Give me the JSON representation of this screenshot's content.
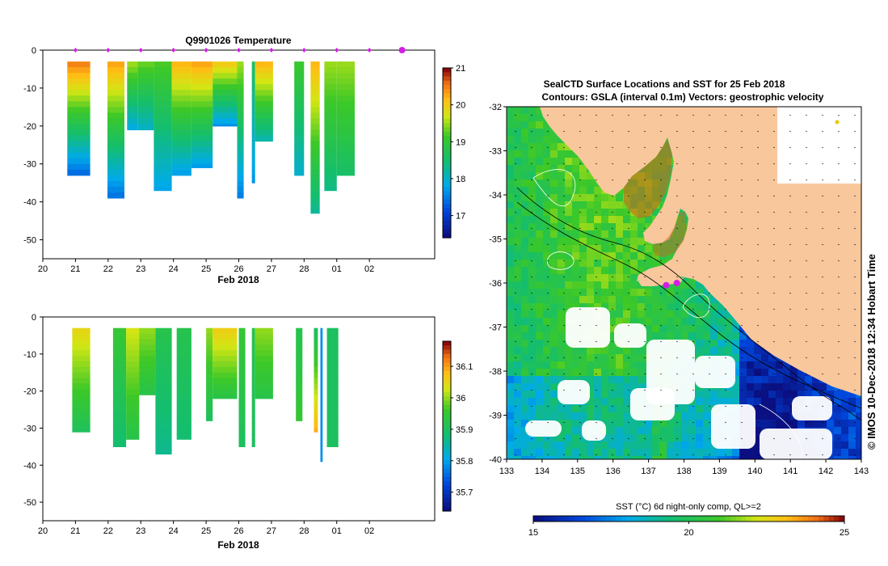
{
  "profile_panels": {
    "title": "Q9901026  Temperature",
    "x_ticks": [
      "20",
      "21",
      "22",
      "23",
      "24",
      "25",
      "26",
      "27",
      "28",
      "01",
      "02"
    ],
    "x_label": "Feb 2018",
    "y_ticks": [
      "0",
      "-10",
      "-20",
      "-30",
      "-40",
      "-50"
    ]
  },
  "chart_data": [
    {
      "type": "heatmap",
      "title": "Q9901026  Temperature",
      "variable": "Temperature",
      "xlabel": "Feb 2018",
      "xlim": [
        20,
        32
      ],
      "ylim": [
        -55,
        0
      ],
      "colorbar": {
        "min": 16.4,
        "max": 21.0,
        "ticks": [
          "21",
          "20",
          "19",
          "18",
          "17"
        ],
        "tick_values": [
          21,
          20,
          19,
          18,
          17
        ]
      },
      "profile_days": [
        21,
        22,
        23,
        24,
        25,
        26,
        27,
        28,
        29,
        30,
        31
      ],
      "current_day": 31,
      "casts": [
        {
          "x0": 20.75,
          "x1": 21.45,
          "depth_min": 3,
          "depth_max": 33,
          "top_value": 20.5,
          "bottom_value": 17.2
        },
        {
          "x0": 21.98,
          "x1": 22.5,
          "depth_min": 3,
          "depth_max": 39,
          "top_value": 20.3,
          "bottom_value": 17.3
        },
        {
          "x0": 22.58,
          "x1": 22.9,
          "depth_min": 3,
          "depth_max": 21,
          "top_value": 19.5,
          "bottom_value": 17.7
        },
        {
          "x0": 22.9,
          "x1": 23.4,
          "depth_min": 3,
          "depth_max": 21,
          "top_value": 19.3,
          "bottom_value": 17.9
        },
        {
          "x0": 23.4,
          "x1": 23.95,
          "depth_min": 3,
          "depth_max": 37,
          "top_value": 19.2,
          "bottom_value": 17.7
        },
        {
          "x0": 23.95,
          "x1": 24.55,
          "depth_min": 3,
          "depth_max": 33,
          "top_value": 20.2,
          "bottom_value": 17.6
        },
        {
          "x0": 24.55,
          "x1": 25.2,
          "depth_min": 3,
          "depth_max": 31,
          "top_value": 20.3,
          "bottom_value": 17.6
        },
        {
          "x0": 25.2,
          "x1": 25.95,
          "depth_min": 3,
          "depth_max": 20,
          "top_value": 20.0,
          "bottom_value": 17.5
        },
        {
          "x0": 25.95,
          "x1": 26.15,
          "depth_min": 3,
          "depth_max": 39,
          "top_value": 19.5,
          "bottom_value": 17.4
        },
        {
          "x0": 26.4,
          "x1": 26.5,
          "depth_min": 3,
          "depth_max": 35,
          "top_value": 18.6,
          "bottom_value": 17.6
        },
        {
          "x0": 26.5,
          "x1": 27.05,
          "depth_min": 3,
          "depth_max": 24,
          "top_value": 20.2,
          "bottom_value": 18.0
        },
        {
          "x0": 27.7,
          "x1": 28.0,
          "depth_min": 3,
          "depth_max": 33,
          "top_value": 19.1,
          "bottom_value": 17.9
        },
        {
          "x0": 28.2,
          "x1": 28.48,
          "depth_min": 3,
          "depth_max": 43,
          "top_value": 20.2,
          "bottom_value": 18.2
        },
        {
          "x0": 28.62,
          "x1": 29.0,
          "depth_min": 3,
          "depth_max": 37,
          "top_value": 19.5,
          "bottom_value": 18.3
        },
        {
          "x0": 29.0,
          "x1": 29.55,
          "depth_min": 3,
          "depth_max": 33,
          "top_value": 19.5,
          "bottom_value": 18.5
        }
      ]
    },
    {
      "type": "heatmap",
      "title": "",
      "variable": "Salinity",
      "xlabel": "Feb 2018",
      "xlim": [
        20,
        32
      ],
      "ylim": [
        -55,
        0
      ],
      "colorbar": {
        "min": 35.64,
        "max": 36.18,
        "ticks": [
          "36.1",
          "36",
          "35.9",
          "35.8",
          "35.7"
        ],
        "tick_values": [
          36.1,
          36.0,
          35.9,
          35.8,
          35.7
        ]
      },
      "casts": [
        {
          "x0": 20.9,
          "x1": 21.45,
          "depth_min": 3,
          "depth_max": 31,
          "top_value": 36.05,
          "bottom_value": 35.9
        },
        {
          "x0": 22.15,
          "x1": 22.55,
          "depth_min": 3,
          "depth_max": 35,
          "top_value": 35.95,
          "bottom_value": 35.88
        },
        {
          "x0": 22.55,
          "x1": 22.95,
          "depth_min": 3,
          "depth_max": 33,
          "top_value": 36.03,
          "bottom_value": 35.92
        },
        {
          "x0": 22.95,
          "x1": 23.45,
          "depth_min": 3,
          "depth_max": 21,
          "top_value": 36.0,
          "bottom_value": 35.92
        },
        {
          "x0": 23.45,
          "x1": 23.95,
          "depth_min": 3,
          "depth_max": 37,
          "top_value": 35.92,
          "bottom_value": 35.86
        },
        {
          "x0": 24.1,
          "x1": 24.55,
          "depth_min": 3,
          "depth_max": 33,
          "top_value": 35.92,
          "bottom_value": 35.88
        },
        {
          "x0": 25.0,
          "x1": 25.2,
          "depth_min": 3,
          "depth_max": 28,
          "top_value": 36.0,
          "bottom_value": 35.9
        },
        {
          "x0": 25.2,
          "x1": 25.95,
          "depth_min": 3,
          "depth_max": 22,
          "top_value": 36.06,
          "bottom_value": 35.92
        },
        {
          "x0": 26.0,
          "x1": 26.2,
          "depth_min": 3,
          "depth_max": 35,
          "top_value": 35.95,
          "bottom_value": 35.9
        },
        {
          "x0": 26.4,
          "x1": 26.5,
          "depth_min": 3,
          "depth_max": 35,
          "top_value": 35.92,
          "bottom_value": 35.9
        },
        {
          "x0": 26.5,
          "x1": 27.05,
          "depth_min": 3,
          "depth_max": 22,
          "top_value": 36.0,
          "bottom_value": 35.92
        },
        {
          "x0": 27.75,
          "x1": 27.95,
          "depth_min": 3,
          "depth_max": 28,
          "top_value": 35.92,
          "bottom_value": 35.95
        },
        {
          "x0": 28.3,
          "x1": 28.42,
          "depth_min": 3,
          "depth_max": 31,
          "top_value": 35.9,
          "bottom_value": 36.1
        },
        {
          "x0": 28.5,
          "x1": 28.57,
          "depth_min": 3,
          "depth_max": 39,
          "top_value": 35.78,
          "bottom_value": 35.78
        },
        {
          "x0": 28.7,
          "x1": 29.05,
          "depth_min": 3,
          "depth_max": 35,
          "top_value": 35.9,
          "bottom_value": 35.9
        }
      ]
    },
    {
      "type": "heatmap",
      "title": "SealCTD Surface Locations and SST for 25 Feb 2018",
      "subtitle": "Contours: GSLA (interval 0.1m) Vectors: geostrophic velocity",
      "xlabel": "",
      "ylabel": "",
      "xlim": [
        133,
        143
      ],
      "ylim": [
        -40,
        -32
      ],
      "x_ticks": [
        "133",
        "134",
        "135",
        "136",
        "137",
        "138",
        "139",
        "140",
        "141",
        "142",
        "143"
      ],
      "y_ticks": [
        "-32",
        "-33",
        "-34",
        "-35",
        "-36",
        "-37",
        "-38",
        "-39",
        "-40"
      ],
      "seal_positions": [
        {
          "lon": 137.5,
          "lat": -36.05
        },
        {
          "lon": 137.8,
          "lat": -36.0
        }
      ],
      "colorbar": {
        "label": "SST (°C) 6d night-only comp, QL>=2",
        "min": 15,
        "max": 25,
        "ticks": [
          "15",
          "20",
          "25"
        ],
        "tick_values": [
          15,
          20,
          25
        ]
      },
      "footer": "© IMOS 10-Dec-2018 12:34 Hobart Time"
    }
  ],
  "colors": {
    "land": "#f9c79c",
    "missing": "#ffffff",
    "marker_magenta": "#d21ee6",
    "contour": "#000000"
  }
}
